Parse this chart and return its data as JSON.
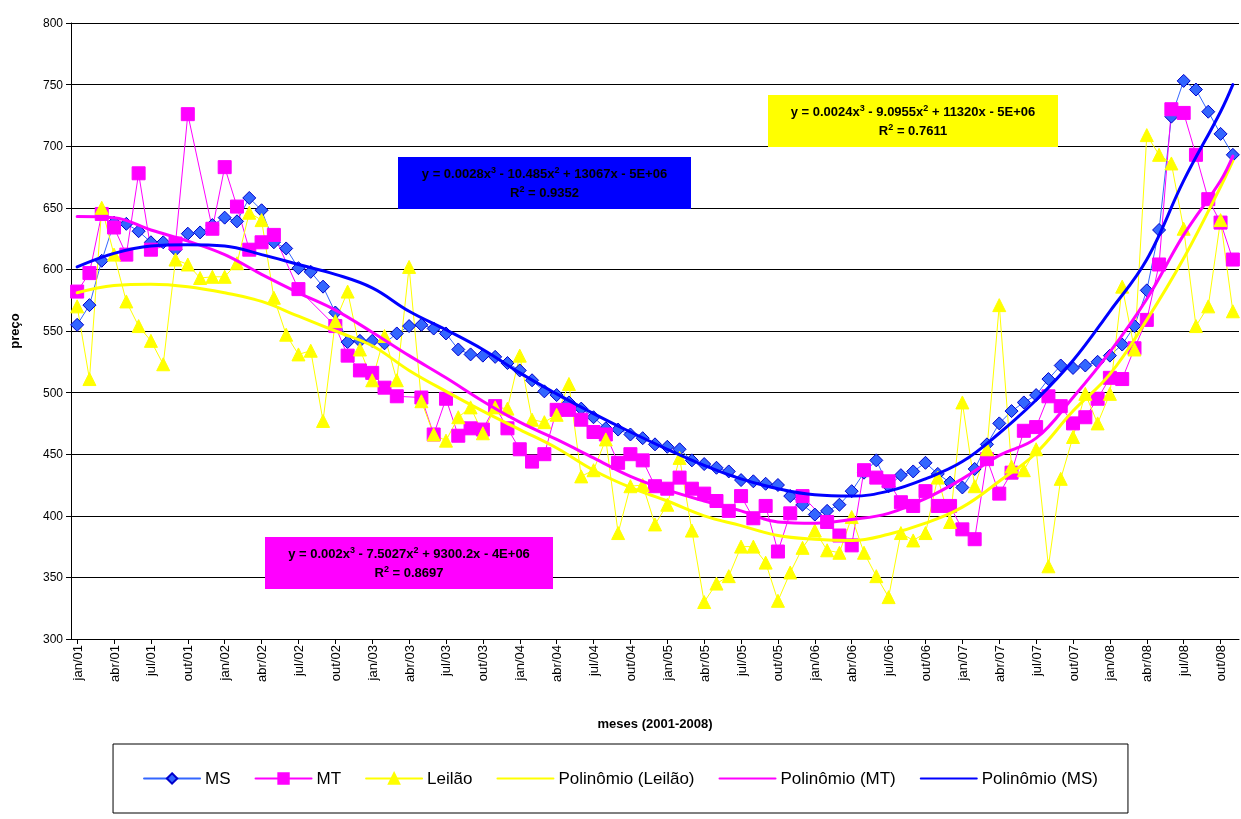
{
  "chart_data": {
    "type": "line",
    "xlabel": "meses (2001-2008)",
    "ylabel": "preço",
    "categories": [
      "jan/01",
      null,
      null,
      "abr/01",
      null,
      null,
      "jul/01",
      null,
      null,
      "out/01",
      null,
      null,
      "jan/02",
      null,
      null,
      "abr/02",
      null,
      null,
      "jul/02",
      null,
      null,
      "out/02",
      null,
      null,
      "jan/03",
      null,
      null,
      "abr/03",
      null,
      null,
      "jul/03",
      null,
      null,
      "out/03",
      null,
      null,
      "jan/04",
      null,
      null,
      "abr/04",
      null,
      null,
      "jul/04",
      null,
      null,
      "out/04",
      null,
      null,
      "jan/05",
      null,
      null,
      "abr/05",
      null,
      null,
      "jul/05",
      null,
      null,
      "out/05",
      null,
      null,
      "jan/06",
      null,
      null,
      "abr/06",
      null,
      null,
      "jul/06",
      null,
      null,
      "out/06",
      null,
      null,
      "jan/07",
      null,
      null,
      "abr/07",
      null,
      null,
      "jul/07",
      null,
      null,
      "out/07",
      null,
      null,
      "jan/08",
      null,
      null,
      "abr/08",
      null,
      null,
      "jul/08",
      null,
      null,
      "out/08",
      null
    ],
    "series": [
      {
        "name": "MS",
        "color": "#3366ff",
        "marker": "diamond",
        "values": [
          555,
          571,
          607,
          638,
          637,
          631,
          622,
          622,
          616,
          629,
          630,
          636,
          642,
          639,
          658,
          648,
          622,
          617,
          601,
          598,
          586,
          565,
          541,
          542,
          542,
          540,
          548,
          554,
          555,
          552,
          548,
          535,
          531,
          530,
          529,
          524,
          518,
          510,
          501,
          498,
          492,
          487,
          480,
          471,
          470,
          466,
          463,
          458,
          456,
          454,
          445,
          442,
          439,
          436,
          429,
          428,
          426,
          425,
          416,
          409,
          401,
          404,
          409,
          420,
          435,
          445,
          424,
          433,
          436,
          443,
          434,
          427,
          423,
          438,
          458,
          475,
          485,
          492,
          498,
          511,
          522,
          520,
          522,
          525,
          530,
          539,
          554,
          583,
          632,
          724,
          753,
          746,
          728,
          710,
          693
        ]
      },
      {
        "name": "MT",
        "color": "#ff00ff",
        "marker": "square",
        "values": [
          582,
          597,
          645,
          634,
          612,
          678,
          616,
          null,
          621,
          726,
          null,
          633,
          683,
          651,
          616,
          622,
          628,
          null,
          584,
          null,
          null,
          554,
          530,
          518,
          516,
          504,
          497,
          null,
          496,
          466,
          495,
          465,
          471,
          470,
          489,
          471,
          454,
          444,
          450,
          486,
          486,
          478,
          468,
          466,
          443,
          450,
          445,
          424,
          422,
          431,
          422,
          418,
          412,
          404,
          416,
          398,
          408,
          371,
          402,
          416,
          null,
          395,
          384,
          376,
          437,
          431,
          428,
          411,
          408,
          420,
          408,
          408,
          389,
          381,
          446,
          418,
          435,
          469,
          472,
          497,
          489,
          475,
          480,
          495,
          512,
          511,
          536,
          559,
          604,
          730,
          727,
          693,
          657,
          638,
          608
        ]
      },
      {
        "name": "Leilão",
        "color": "#ffff00",
        "marker": "triangle",
        "values": [
          570,
          511,
          650,
          612,
          574,
          554,
          542,
          523,
          608,
          604,
          593,
          594,
          594,
          605,
          646,
          640,
          577,
          547,
          531,
          534,
          477,
          558,
          582,
          535,
          510,
          546,
          510,
          602,
          493,
          466,
          461,
          480,
          488,
          467,
          488,
          487,
          530,
          478,
          476,
          482,
          507,
          432,
          437,
          462,
          386,
          424,
          425,
          393,
          409,
          447,
          388,
          330,
          345,
          351,
          375,
          375,
          362,
          331,
          354,
          374,
          388,
          372,
          370,
          399,
          370,
          351,
          334,
          386,
          380,
          386,
          431,
          395,
          492,
          424,
          454,
          571,
          440,
          437,
          454,
          359,
          430,
          464,
          499,
          475,
          499,
          586,
          535,
          709,
          693,
          686,
          633,
          554,
          570,
          640,
          566
        ]
      },
      {
        "name": "Polinômio (Leilão)",
        "color": "#ffff00",
        "marker": "none",
        "values": [
          581,
          null,
          null,
          587,
          null,
          null,
          588,
          null,
          null,
          586,
          null,
          null,
          581,
          null,
          null,
          574,
          null,
          null,
          562,
          null,
          null,
          550,
          null,
          null,
          538,
          null,
          null,
          518,
          null,
          null,
          501,
          null,
          null,
          485,
          null,
          null,
          470,
          null,
          null,
          455,
          null,
          null,
          437,
          null,
          null,
          423,
          null,
          null,
          412,
          null,
          null,
          400,
          null,
          null,
          392,
          null,
          null,
          384,
          null,
          null,
          381,
          null,
          null,
          380,
          null,
          null,
          385,
          null,
          null,
          394,
          null,
          null,
          407,
          null,
          null,
          428,
          null,
          null,
          451,
          null,
          null,
          485,
          null,
          null,
          515,
          null,
          null,
          559,
          null,
          null,
          609,
          null,
          null,
          667,
          688
        ]
      },
      {
        "name": "Polinômio (MT)",
        "color": "#ff00ff",
        "marker": "none",
        "values": [
          643,
          null,
          null,
          642,
          null,
          null,
          632,
          null,
          null,
          623,
          null,
          null,
          612,
          null,
          null,
          596,
          null,
          null,
          581,
          null,
          null,
          567,
          null,
          null,
          549,
          null,
          null,
          530,
          null,
          null,
          512,
          null,
          null,
          493,
          null,
          null,
          476,
          null,
          null,
          462,
          null,
          null,
          447,
          null,
          null,
          432,
          null,
          null,
          421,
          null,
          null,
          412,
          null,
          null,
          404,
          null,
          null,
          395,
          null,
          null,
          394,
          null,
          null,
          397,
          null,
          null,
          402,
          null,
          null,
          414,
          null,
          null,
          430,
          null,
          null,
          449,
          null,
          null,
          463,
          null,
          null,
          496,
          null,
          null,
          533,
          null,
          null,
          576,
          null,
          null,
          628,
          null,
          null,
          672,
          692
        ]
      },
      {
        "name": "Polinômio (MS)",
        "color": "#0000ff",
        "marker": "none",
        "values": [
          602,
          null,
          null,
          613,
          null,
          null,
          619,
          null,
          null,
          620,
          null,
          null,
          619,
          null,
          null,
          612,
          null,
          null,
          604,
          null,
          null,
          596,
          null,
          null,
          585,
          null,
          null,
          566,
          null,
          null,
          551,
          null,
          null,
          535,
          null,
          null,
          516,
          null,
          null,
          499,
          null,
          null,
          483,
          null,
          null,
          468,
          null,
          null,
          454,
          null,
          null,
          441,
          null,
          null,
          430,
          null,
          null,
          422,
          null,
          null,
          417,
          null,
          null,
          416,
          null,
          null,
          420,
          null,
          null,
          430,
          null,
          null,
          444,
          null,
          null,
          467,
          null,
          null,
          494,
          null,
          null,
          526,
          null,
          null,
          566,
          null,
          null,
          608,
          null,
          null,
          672,
          null,
          null,
          728,
          750
        ]
      }
    ],
    "ylim": [
      300,
      800
    ],
    "yticks": [
      300,
      350,
      400,
      450,
      500,
      550,
      600,
      650,
      700,
      750,
      800
    ],
    "grid": "y",
    "legend": "bottom",
    "line_style": "solid",
    "annotations": [
      "y = 0.0024x$^{3}$ - 9.0955x$^{2}$ + 11320x - 5E+06\nR$^{2}$ = 0.7611",
      "y = 0.0028x$^{3}$ - 10.485x$^{2}$ + 13067x - 5E+06\nR$^{2}$ = 0.9352",
      "y = 0.002x$^{3}$ - 7.5027x$^{2}$ + 9300.2x - 4E+06\nR$^{2}$ = 0.8697"
    ]
  }
}
